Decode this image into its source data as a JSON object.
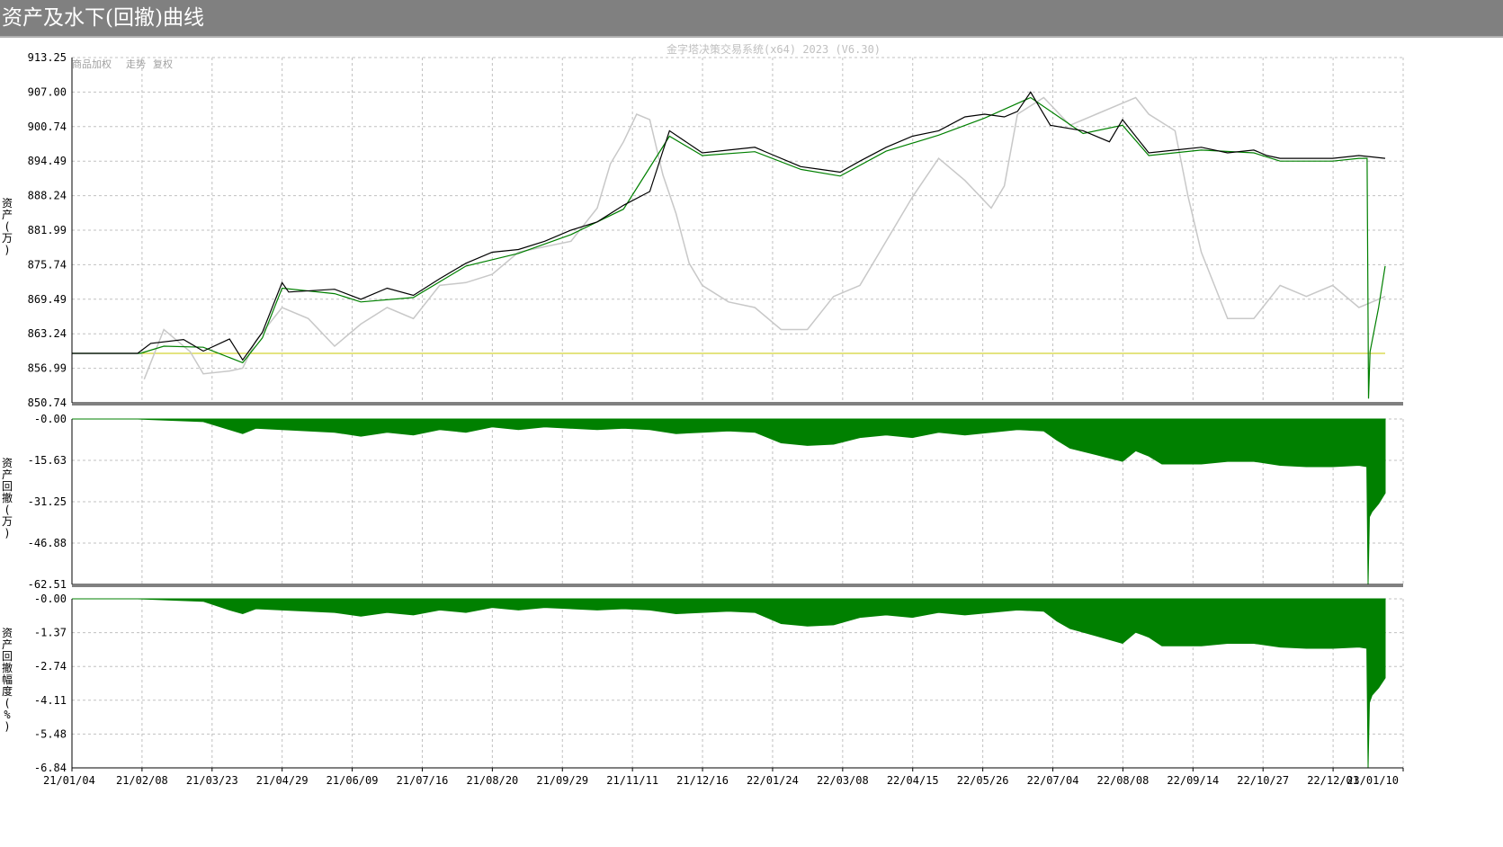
{
  "window": {
    "title": "资产及水下(回撤)曲线"
  },
  "watermark": "金字塔决策交易系统(x64) 2023 (V6.30)",
  "legend": [
    "商品加权",
    "走势",
    "复权"
  ],
  "colors": {
    "equity": "#000000",
    "equity_alt": "#008000",
    "price": "#c8c8c8",
    "baseline": "#c8c800",
    "drawdown_fill": "#008000",
    "grid": "#c0c0c0",
    "axis": "#000000"
  },
  "chart_data": [
    {
      "type": "line",
      "ylabel": "资产(万)",
      "ylim": [
        850.74,
        913.25
      ],
      "yticks": [
        "913.25",
        "907.00",
        "900.74",
        "894.49",
        "888.24",
        "881.99",
        "875.74",
        "869.49",
        "863.24",
        "856.99",
        "850.74"
      ],
      "baseline": 859.7,
      "series": [
        {
          "role": "equity",
          "points": [
            [
              0,
              859.7
            ],
            [
              0.05,
              859.7
            ],
            [
              0.06,
              861.5
            ],
            [
              0.085,
              862.2
            ],
            [
              0.1,
              860.1
            ],
            [
              0.12,
              862.3
            ],
            [
              0.13,
              858.5
            ],
            [
              0.145,
              863.5
            ],
            [
              0.16,
              872.5
            ],
            [
              0.165,
              870.8
            ],
            [
              0.2,
              871.3
            ],
            [
              0.22,
              869.5
            ],
            [
              0.24,
              871.5
            ],
            [
              0.26,
              870.2
            ],
            [
              0.28,
              873.2
            ],
            [
              0.3,
              876.0
            ],
            [
              0.32,
              878.0
            ],
            [
              0.34,
              878.5
            ],
            [
              0.36,
              880.0
            ],
            [
              0.38,
              882.0
            ],
            [
              0.4,
              883.5
            ],
            [
              0.42,
              886.5
            ],
            [
              0.44,
              889.0
            ],
            [
              0.455,
              900.0
            ],
            [
              0.48,
              896.0
            ],
            [
              0.5,
              896.5
            ],
            [
              0.52,
              897.0
            ],
            [
              0.53,
              896.0
            ],
            [
              0.555,
              893.5
            ],
            [
              0.57,
              893.0
            ],
            [
              0.585,
              892.5
            ],
            [
              0.6,
              894.5
            ],
            [
              0.62,
              897.0
            ],
            [
              0.64,
              899.0
            ],
            [
              0.66,
              900.0
            ],
            [
              0.68,
              902.5
            ],
            [
              0.695,
              903.0
            ],
            [
              0.71,
              902.5
            ],
            [
              0.72,
              903.5
            ],
            [
              0.73,
              907.0
            ],
            [
              0.745,
              901.0
            ],
            [
              0.77,
              900.0
            ],
            [
              0.79,
              898.0
            ],
            [
              0.8,
              902.0
            ],
            [
              0.82,
              896.0
            ],
            [
              0.84,
              896.5
            ],
            [
              0.86,
              897.0
            ],
            [
              0.88,
              896.0
            ],
            [
              0.9,
              896.5
            ],
            [
              0.91,
              895.5
            ],
            [
              0.92,
              895.0
            ],
            [
              0.94,
              895.0
            ],
            [
              0.96,
              895.0
            ],
            [
              0.98,
              895.5
            ],
            [
              1.0,
              895.0
            ]
          ]
        },
        {
          "role": "equity_alt",
          "points": [
            [
              0.0,
              859.7
            ],
            [
              0.052,
              859.7
            ],
            [
              0.07,
              861.0
            ],
            [
              0.1,
              860.8
            ],
            [
              0.13,
              858.0
            ],
            [
              0.145,
              862.5
            ],
            [
              0.16,
              871.5
            ],
            [
              0.2,
              870.5
            ],
            [
              0.22,
              869.0
            ],
            [
              0.26,
              869.8
            ],
            [
              0.3,
              875.5
            ],
            [
              0.34,
              877.8
            ],
            [
              0.38,
              881.2
            ],
            [
              0.42,
              885.8
            ],
            [
              0.455,
              899.0
            ],
            [
              0.48,
              895.5
            ],
            [
              0.52,
              896.2
            ],
            [
              0.555,
              893.0
            ],
            [
              0.585,
              891.8
            ],
            [
              0.62,
              896.3
            ],
            [
              0.66,
              899.2
            ],
            [
              0.695,
              902.3
            ],
            [
              0.73,
              906.0
            ],
            [
              0.77,
              899.5
            ],
            [
              0.8,
              901.0
            ],
            [
              0.82,
              895.5
            ],
            [
              0.86,
              896.5
            ],
            [
              0.9,
              896.0
            ],
            [
              0.92,
              894.5
            ],
            [
              0.96,
              894.5
            ],
            [
              0.98,
              895.0
            ],
            [
              0.9862,
              895.0
            ],
            [
              0.9873,
              851.5
            ],
            [
              0.9885,
              860.0
            ],
            [
              0.995,
              868.0
            ],
            [
              1.0,
              875.5
            ]
          ]
        },
        {
          "role": "price",
          "points": [
            [
              0.055,
              855.0
            ],
            [
              0.07,
              864.0
            ],
            [
              0.09,
              860.0
            ],
            [
              0.1,
              856.0
            ],
            [
              0.12,
              856.5
            ],
            [
              0.13,
              857.0
            ],
            [
              0.14,
              862.0
            ],
            [
              0.16,
              868.0
            ],
            [
              0.18,
              866.0
            ],
            [
              0.2,
              861.0
            ],
            [
              0.22,
              865.0
            ],
            [
              0.24,
              868.0
            ],
            [
              0.26,
              866.0
            ],
            [
              0.28,
              872.0
            ],
            [
              0.3,
              872.5
            ],
            [
              0.32,
              874.0
            ],
            [
              0.34,
              878.0
            ],
            [
              0.36,
              879.0
            ],
            [
              0.38,
              880.0
            ],
            [
              0.4,
              886.0
            ],
            [
              0.41,
              894.0
            ],
            [
              0.42,
              898.0
            ],
            [
              0.43,
              903.0
            ],
            [
              0.44,
              902.0
            ],
            [
              0.45,
              892.0
            ],
            [
              0.46,
              885.0
            ],
            [
              0.47,
              876.0
            ],
            [
              0.48,
              872.0
            ],
            [
              0.5,
              869.0
            ],
            [
              0.52,
              868.0
            ],
            [
              0.54,
              864.0
            ],
            [
              0.56,
              864.0
            ],
            [
              0.58,
              870.0
            ],
            [
              0.6,
              872.0
            ],
            [
              0.62,
              880.0
            ],
            [
              0.64,
              888.0
            ],
            [
              0.66,
              895.0
            ],
            [
              0.68,
              891.0
            ],
            [
              0.7,
              886.0
            ],
            [
              0.71,
              890.0
            ],
            [
              0.72,
              903.0
            ],
            [
              0.74,
              906.0
            ],
            [
              0.76,
              901.0
            ],
            [
              0.78,
              903.0
            ],
            [
              0.8,
              905.0
            ],
            [
              0.81,
              906.0
            ],
            [
              0.82,
              903.0
            ],
            [
              0.84,
              900.0
            ],
            [
              0.85,
              888.0
            ],
            [
              0.86,
              878.0
            ],
            [
              0.87,
              872.0
            ],
            [
              0.88,
              866.0
            ],
            [
              0.9,
              866.0
            ],
            [
              0.92,
              872.0
            ],
            [
              0.94,
              870.0
            ],
            [
              0.96,
              872.0
            ],
            [
              0.98,
              868.0
            ],
            [
              1.0,
              870.0
            ]
          ]
        }
      ]
    },
    {
      "type": "area",
      "ylabel": "资产回撤(万)",
      "ylim": [
        -62.51,
        0.0
      ],
      "yticks": [
        "-0.00",
        "-15.63",
        "-31.25",
        "-46.88",
        "-62.51"
      ],
      "series": [
        {
          "role": "drawdown",
          "points": [
            [
              0,
              0
            ],
            [
              0.05,
              0
            ],
            [
              0.06,
              -0.2
            ],
            [
              0.1,
              -1.0
            ],
            [
              0.12,
              -4.0
            ],
            [
              0.13,
              -5.5
            ],
            [
              0.14,
              -3.5
            ],
            [
              0.2,
              -5.0
            ],
            [
              0.22,
              -6.5
            ],
            [
              0.24,
              -5.0
            ],
            [
              0.26,
              -6.0
            ],
            [
              0.28,
              -4.0
            ],
            [
              0.3,
              -5.0
            ],
            [
              0.32,
              -3.0
            ],
            [
              0.34,
              -4.0
            ],
            [
              0.36,
              -3.0
            ],
            [
              0.4,
              -4.0
            ],
            [
              0.42,
              -3.5
            ],
            [
              0.44,
              -4.0
            ],
            [
              0.46,
              -5.5
            ],
            [
              0.48,
              -5.0
            ],
            [
              0.5,
              -4.5
            ],
            [
              0.52,
              -5.0
            ],
            [
              0.54,
              -9.0
            ],
            [
              0.56,
              -10.0
            ],
            [
              0.58,
              -9.5
            ],
            [
              0.6,
              -7.0
            ],
            [
              0.62,
              -6.0
            ],
            [
              0.64,
              -7.0
            ],
            [
              0.66,
              -5.0
            ],
            [
              0.68,
              -6.0
            ],
            [
              0.7,
              -5.0
            ],
            [
              0.72,
              -4.0
            ],
            [
              0.74,
              -4.5
            ],
            [
              0.75,
              -8.0
            ],
            [
              0.76,
              -11.0
            ],
            [
              0.78,
              -13.5
            ],
            [
              0.8,
              -16.0
            ],
            [
              0.81,
              -12.0
            ],
            [
              0.82,
              -14.0
            ],
            [
              0.83,
              -17.0
            ],
            [
              0.86,
              -17.0
            ],
            [
              0.88,
              -16.0
            ],
            [
              0.9,
              -16.0
            ],
            [
              0.92,
              -17.5
            ],
            [
              0.94,
              -18.0
            ],
            [
              0.96,
              -18.0
            ],
            [
              0.98,
              -17.5
            ],
            [
              0.986,
              -18.0
            ],
            [
              0.987,
              -62.51
            ],
            [
              0.988,
              -37.0
            ],
            [
              0.99,
              -35.0
            ],
            [
              0.995,
              -32.0
            ],
            [
              1.0,
              -28.0
            ]
          ]
        }
      ]
    },
    {
      "type": "area",
      "ylabel": "资产回撤幅度(%)",
      "ylim": [
        -6.84,
        0.0
      ],
      "yticks": [
        "-0.00",
        "-1.37",
        "-2.74",
        "-4.11",
        "-5.48",
        "-6.84"
      ],
      "series": [
        {
          "role": "drawdown_pct",
          "points": [
            [
              0,
              0
            ],
            [
              0.05,
              0
            ],
            [
              0.06,
              -0.02
            ],
            [
              0.1,
              -0.1
            ],
            [
              0.12,
              -0.45
            ],
            [
              0.13,
              -0.6
            ],
            [
              0.14,
              -0.4
            ],
            [
              0.2,
              -0.55
            ],
            [
              0.22,
              -0.7
            ],
            [
              0.24,
              -0.55
            ],
            [
              0.26,
              -0.65
            ],
            [
              0.28,
              -0.45
            ],
            [
              0.3,
              -0.55
            ],
            [
              0.32,
              -0.35
            ],
            [
              0.34,
              -0.45
            ],
            [
              0.36,
              -0.35
            ],
            [
              0.4,
              -0.45
            ],
            [
              0.42,
              -0.4
            ],
            [
              0.44,
              -0.45
            ],
            [
              0.46,
              -0.6
            ],
            [
              0.48,
              -0.55
            ],
            [
              0.5,
              -0.5
            ],
            [
              0.52,
              -0.55
            ],
            [
              0.54,
              -1.0
            ],
            [
              0.56,
              -1.1
            ],
            [
              0.58,
              -1.05
            ],
            [
              0.6,
              -0.75
            ],
            [
              0.62,
              -0.65
            ],
            [
              0.64,
              -0.75
            ],
            [
              0.66,
              -0.55
            ],
            [
              0.68,
              -0.65
            ],
            [
              0.7,
              -0.55
            ],
            [
              0.72,
              -0.45
            ],
            [
              0.74,
              -0.5
            ],
            [
              0.75,
              -0.9
            ],
            [
              0.76,
              -1.2
            ],
            [
              0.78,
              -1.5
            ],
            [
              0.8,
              -1.8
            ],
            [
              0.81,
              -1.35
            ],
            [
              0.82,
              -1.55
            ],
            [
              0.83,
              -1.9
            ],
            [
              0.86,
              -1.9
            ],
            [
              0.88,
              -1.8
            ],
            [
              0.9,
              -1.8
            ],
            [
              0.92,
              -1.95
            ],
            [
              0.94,
              -2.0
            ],
            [
              0.96,
              -2.0
            ],
            [
              0.98,
              -1.95
            ],
            [
              0.986,
              -2.0
            ],
            [
              0.987,
              -6.84
            ],
            [
              0.988,
              -4.2
            ],
            [
              0.99,
              -3.9
            ],
            [
              0.995,
              -3.6
            ],
            [
              1.0,
              -3.2
            ]
          ]
        }
      ]
    }
  ],
  "x_axis": {
    "type": "date",
    "tick_labels": [
      "21/01/04",
      "21/02/08",
      "21/03/23",
      "21/04/29",
      "21/06/09",
      "21/07/16",
      "21/08/20",
      "21/09/29",
      "21/11/11",
      "21/12/16",
      "22/01/24",
      "22/03/08",
      "22/04/15",
      "22/05/26",
      "22/07/04",
      "22/08/08",
      "22/09/14",
      "22/10/27",
      "22/12/01",
      "23/01/10"
    ]
  }
}
